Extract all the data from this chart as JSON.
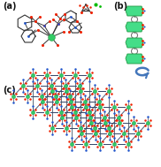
{
  "bg_color": "#ffffff",
  "panel_a_label": "(a)",
  "panel_b_label": "(b)",
  "panel_c_label": "(c)",
  "label_fontsize": 7,
  "green_color": "#33cc66",
  "green_dark": "#229944",
  "green_poly": "#44dd88",
  "red_color": "#ee2200",
  "blue_color": "#2255cc",
  "blue_light": "#6699dd",
  "gray_color": "#999999",
  "dark_color": "#111111",
  "dark_bond": "#333333",
  "arrow_color": "#4477bb",
  "orange_color": "#ff6600",
  "teal_color": "#009999"
}
